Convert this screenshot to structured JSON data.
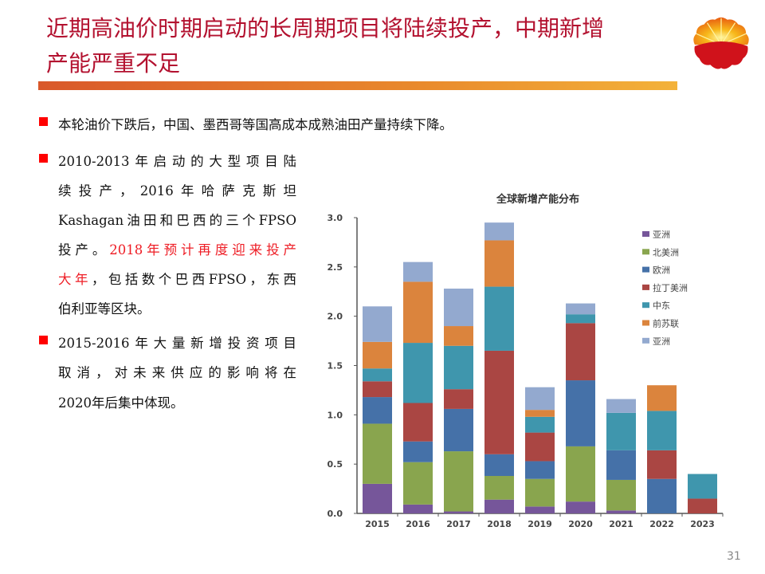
{
  "title": {
    "line1": "近期高油价时期启动的长周期项目将陆续投产，中期新增",
    "line2": "产能严重不足"
  },
  "bullets": [
    {
      "lines": [
        "本轮油价下跌后，中国、墨西哥等国高成本成熟油田产量持续下降。"
      ]
    },
    {
      "lines": [
        "2010-2013年启动的大型项目陆",
        "续投产，2016年哈萨克斯坦",
        "Kashagan油田和巴西的三个FPSO",
        "投产。",
        "2018年预计再度迎来投产",
        "大年",
        "，包括数个巴西FPSO，东西",
        "伯利亚等区块。"
      ]
    },
    {
      "lines": [
        "2015-2016年大量新增投资项目",
        "取消，对未来供应的影响将在",
        "2020年后集中体现。"
      ]
    }
  ],
  "page_number": "31",
  "colors": {
    "title": "#b3112f",
    "bullet": "#ff0000",
    "highlight": "#ee1c24"
  },
  "chart_data": {
    "type": "bar",
    "stacked": true,
    "title": "全球新增产能分布",
    "xlabel": "",
    "ylabel": "",
    "ylim": [
      0,
      3.0
    ],
    "yticks": [
      "0.0",
      "0.5",
      "1.0",
      "1.5",
      "2.0",
      "2.5",
      "3.0"
    ],
    "grid": false,
    "legend_position": "right",
    "categories": [
      "2015",
      "2016",
      "2017",
      "2018",
      "2019",
      "2020",
      "2021",
      "2022",
      "2023"
    ],
    "series": [
      {
        "name": "亚洲",
        "color": "#76569a",
        "values": [
          0.3,
          0.09,
          0.02,
          0.14,
          0.07,
          0.12,
          0.03,
          0,
          0
        ]
      },
      {
        "name": "北美洲",
        "color": "#89a54e",
        "values": [
          0.61,
          0.43,
          0.61,
          0.24,
          0.28,
          0.56,
          0.31,
          0,
          0
        ]
      },
      {
        "name": "欧洲",
        "color": "#4571a8",
        "values": [
          0.27,
          0.21,
          0.43,
          0.22,
          0.18,
          0.67,
          0.3,
          0.35,
          0
        ]
      },
      {
        "name": "拉丁美洲",
        "color": "#aa4643",
        "values": [
          0.16,
          0.39,
          0.2,
          1.05,
          0.29,
          0.58,
          0,
          0.29,
          0.15
        ]
      },
      {
        "name": "中东",
        "color": "#3f96ad",
        "values": [
          0.13,
          0.61,
          0.44,
          0.65,
          0.16,
          0.09,
          0.38,
          0.4,
          0.25
        ]
      },
      {
        "name": "前苏联",
        "color": "#db843d",
        "values": [
          0.27,
          0.62,
          0.2,
          0.47,
          0.07,
          0,
          0,
          0.26,
          0
        ]
      },
      {
        "name": "亚洲",
        "color": "#93a9cf",
        "values": [
          0.36,
          0.2,
          0.38,
          0.18,
          0.23,
          0.11,
          0.14,
          0,
          0
        ]
      }
    ]
  }
}
